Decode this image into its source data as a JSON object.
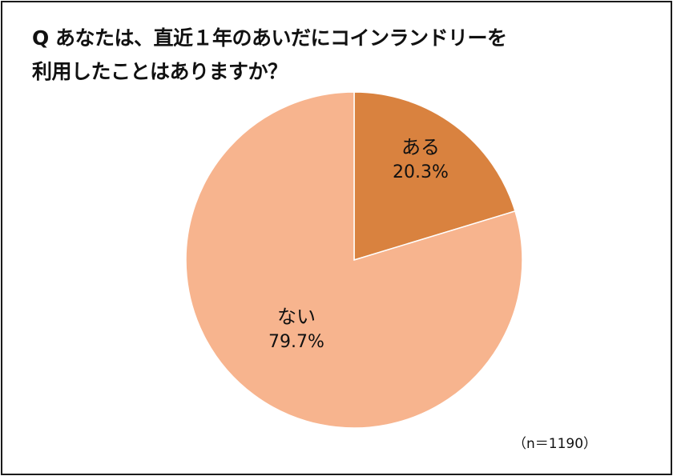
{
  "title": {
    "line1": "Q あなたは、直近１年のあいだにコインランドリーを",
    "line2": "利用したことはありますか？"
  },
  "sample_note": "（n＝1190）",
  "slices": [
    {
      "label": "ある",
      "percent_text": "20.3%",
      "color": "#D9823F"
    },
    {
      "label": "ない",
      "percent_text": "79.7%",
      "color": "#F7B48E"
    }
  ],
  "chart_data": {
    "type": "pie",
    "title": "Q あなたは、直近１年のあいだにコインランドリーを利用したことはありますか？",
    "categories": [
      "ある",
      "ない"
    ],
    "values": [
      20.3,
      79.7
    ],
    "unit": "%",
    "colors": [
      "#D9823F",
      "#F7B48E"
    ],
    "start_angle": "12 o'clock",
    "direction": "clockwise",
    "annotations": [
      "（n＝1190）"
    ],
    "legend": "none (labels inside slices)"
  }
}
